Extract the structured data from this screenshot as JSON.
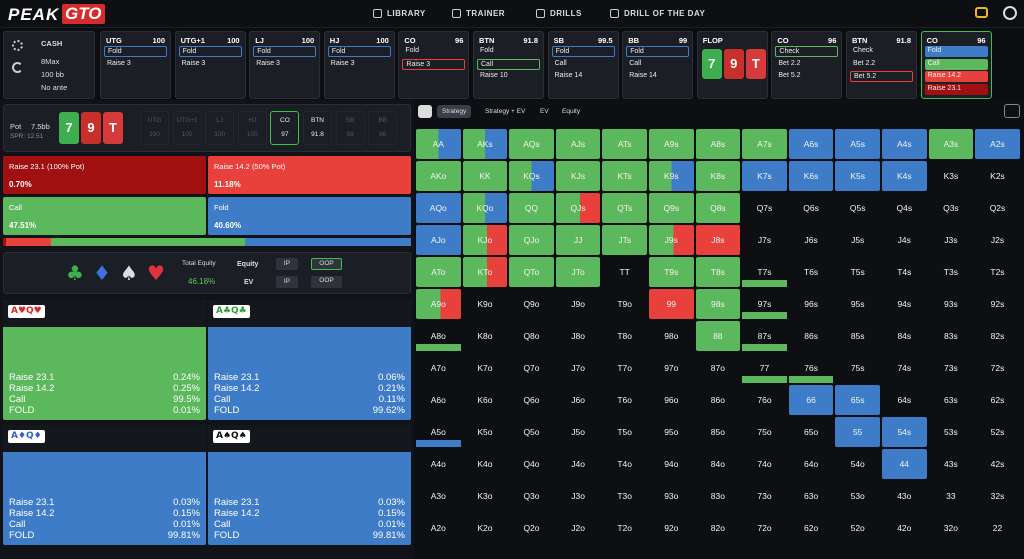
{
  "nav": {
    "logo_a": "PEAK",
    "logo_b": "GTO",
    "links": [
      "LIBRARY",
      "TRAINER",
      "DRILLS",
      "DRILL OF THE DAY"
    ]
  },
  "game": [
    "CASH",
    "8Max",
    "100 bb",
    "No ante"
  ],
  "top": [
    {
      "name": "UTG",
      "stack": "100",
      "actions": [
        "Fold",
        "Raise 3"
      ]
    },
    {
      "name": "UTG+1",
      "stack": "100",
      "actions": [
        "Fold",
        "Raise 3"
      ]
    },
    {
      "name": "LJ",
      "stack": "100",
      "actions": [
        "Fold",
        "Raise 3"
      ]
    },
    {
      "name": "HJ",
      "stack": "100",
      "actions": [
        "Fold",
        "Raise 3"
      ]
    },
    {
      "name": "CO",
      "stack": "96",
      "actions": [
        "Fold",
        "Raise 3"
      ]
    },
    {
      "name": "BTN",
      "stack": "91.8",
      "actions": [
        "Fold",
        "Call",
        "Raise 10"
      ]
    },
    {
      "name": "SB",
      "stack": "99.5",
      "actions": [
        "Fold",
        "Call",
        "Raise 14"
      ]
    },
    {
      "name": "BB",
      "stack": "99",
      "actions": [
        "Fold",
        "Call",
        "Raise 14"
      ]
    },
    {
      "name": "FLOP",
      "cards": [
        "7",
        "9",
        "T"
      ]
    },
    {
      "name": "CO",
      "stack": "96",
      "actions": [
        "Check",
        "Bet 2.2",
        "Bet 5.2"
      ]
    },
    {
      "name": "BTN",
      "stack": "91.8",
      "actions": [
        "Check",
        "Bet 2.2",
        "Bet 5.2"
      ]
    },
    {
      "name": "CO",
      "stack": "96",
      "actions": [
        "Fold",
        "Call",
        "Raise 14.2",
        "Raise 23.1"
      ]
    }
  ],
  "pot": {
    "label": "Pot",
    "value": "7.5bb",
    "spr": "SPR: 12.51",
    "cards": [
      "7",
      "9",
      "T"
    ]
  },
  "seats": [
    {
      "name": "UTG",
      "stack": "100"
    },
    {
      "name": "UTG+1",
      "stack": "100"
    },
    {
      "name": "LJ",
      "stack": "100"
    },
    {
      "name": "HJ",
      "stack": "100"
    },
    {
      "name": "CO",
      "stack": "97"
    },
    {
      "name": "BTN",
      "stack": "91.8"
    },
    {
      "name": "SB",
      "stack": "99"
    },
    {
      "name": "BB",
      "stack": "88"
    }
  ],
  "strategy": [
    {
      "label": "Raise 23.1 (100% Pot)",
      "freq": 0.7,
      "freq_label": "0.70%"
    },
    {
      "label": "Raise 14.2 (50% Pot)",
      "freq": 11.18,
      "freq_label": "11.18%"
    },
    {
      "label": "Call",
      "freq": 47.51,
      "freq_label": "47.51%"
    },
    {
      "label": "Fold",
      "freq": 40.6,
      "freq_label": "40.60%"
    }
  ],
  "equity": {
    "suits": [
      "♣",
      "♦",
      "♠",
      "♥"
    ],
    "title": "Total Equity",
    "value": "46.18%",
    "equity": "Equity",
    "ev": "EV",
    "ip": [
      "IP",
      "IP"
    ],
    "oop": [
      "OOP",
      "OOP"
    ]
  },
  "combos": [
    {
      "hand": "A♥Q♥",
      "rows": [
        [
          "Raise 23.1",
          "0.24%"
        ],
        [
          "Raise 14.2",
          "0.25%"
        ],
        [
          "Call",
          "99.5%"
        ],
        [
          "FOLD",
          "0.01%"
        ]
      ]
    },
    {
      "hand": "A♣Q♣",
      "rows": [
        [
          "Raise 23.1",
          "0.06%"
        ],
        [
          "Raise 14.2",
          "0.21%"
        ],
        [
          "Call",
          "0.11%"
        ],
        [
          "FOLD",
          "99.62%"
        ]
      ]
    },
    {
      "hand": "A♦Q♦",
      "rows": [
        [
          "Raise 23.1",
          "0.03%"
        ],
        [
          "Raise 14.2",
          "0.15%"
        ],
        [
          "Call",
          "0.01%"
        ],
        [
          "FOLD",
          "99.81%"
        ]
      ]
    },
    {
      "hand": "A♠Q♠",
      "rows": [
        [
          "Raise 23.1",
          "0.03%"
        ],
        [
          "Raise 14.2",
          "0.15%"
        ],
        [
          "Call",
          "0.01%"
        ],
        [
          "FOLD",
          "99.81%"
        ]
      ]
    }
  ],
  "tabs": [
    "Strategy",
    "Strategy + EV",
    "EV",
    "Equity"
  ],
  "grid": [
    [
      "AA",
      "AKs",
      "AQs",
      "AJs",
      "ATs",
      "A9s",
      "A8s",
      "A7s",
      "A6s",
      "A5s",
      "A4s",
      "A3s",
      "A2s"
    ],
    [
      "AKo",
      "KK",
      "KQs",
      "KJs",
      "KTs",
      "K9s",
      "K8s",
      "K7s",
      "K6s",
      "K5s",
      "K4s",
      "K3s",
      "K2s"
    ],
    [
      "AQo",
      "KQo",
      "QQ",
      "QJs",
      "QTs",
      "Q9s",
      "Q8s",
      "Q7s",
      "Q6s",
      "Q5s",
      "Q4s",
      "Q3s",
      "Q2s"
    ],
    [
      "AJo",
      "KJo",
      "QJo",
      "JJ",
      "JTs",
      "J9s",
      "J8s",
      "J7s",
      "J6s",
      "J5s",
      "J4s",
      "J3s",
      "J2s"
    ],
    [
      "ATo",
      "KTo",
      "QTo",
      "JTo",
      "TT",
      "T9s",
      "T8s",
      "T7s",
      "T6s",
      "T5s",
      "T4s",
      "T3s",
      "T2s"
    ],
    [
      "A9o",
      "K9o",
      "Q9o",
      "J9o",
      "T9o",
      "99",
      "98s",
      "97s",
      "96s",
      "95s",
      "94s",
      "93s",
      "92s"
    ],
    [
      "A8o",
      "K8o",
      "Q8o",
      "J8o",
      "T8o",
      "98o",
      "88",
      "87s",
      "86s",
      "85s",
      "84s",
      "83s",
      "82s"
    ],
    [
      "A7o",
      "K7o",
      "Q7o",
      "J7o",
      "T7o",
      "97o",
      "87o",
      "77",
      "76s",
      "75s",
      "74s",
      "73s",
      "72s"
    ],
    [
      "A6o",
      "K6o",
      "Q6o",
      "J6o",
      "T6o",
      "96o",
      "86o",
      "76o",
      "66",
      "65s",
      "64s",
      "63s",
      "62s"
    ],
    [
      "A5o",
      "K5o",
      "Q5o",
      "J5o",
      "T5o",
      "95o",
      "85o",
      "75o",
      "65o",
      "55",
      "54s",
      "53s",
      "52s"
    ],
    [
      "A4o",
      "K4o",
      "Q4o",
      "J4o",
      "T4o",
      "94o",
      "84o",
      "74o",
      "64o",
      "54o",
      "44",
      "43s",
      "42s"
    ],
    [
      "A3o",
      "K3o",
      "Q3o",
      "J3o",
      "T3o",
      "93o",
      "83o",
      "73o",
      "63o",
      "53o",
      "43o",
      "33",
      "32s"
    ],
    [
      "A2o",
      "K2o",
      "Q2o",
      "J2o",
      "T2o",
      "92o",
      "82o",
      "72o",
      "62o",
      "52o",
      "42o",
      "32o",
      "22"
    ]
  ]
}
